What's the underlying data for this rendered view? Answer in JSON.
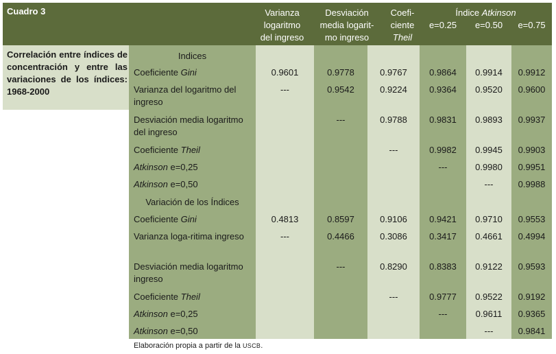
{
  "table": {
    "title": "Cuadro 3",
    "caption": "Correlación entre índices de concentración y entre las variaciones de los índices: 1968-2000",
    "headers": {
      "varianza": [
        "Varianza",
        "logaritmo",
        "del ingreso"
      ],
      "desviacion": [
        "Desviación",
        "media logarit-",
        "mo ingreso"
      ],
      "theil": [
        "Coefi-",
        "ciente",
        "Theil"
      ],
      "atkinson_group": "Índice Atkinson",
      "atkinson_group_prefix": "Índice ",
      "atkinson_group_italic": "Atkinson",
      "e025": "e=0.25",
      "e050": "e=0.50",
      "e075": "e=0.75"
    },
    "sections": {
      "indices": "Indices",
      "variacion": "Variación de los Índices"
    },
    "rows_indices": [
      {
        "label_pre": "Coeficiente ",
        "label_it": "Gini",
        "label_post": "",
        "values": [
          "0.9601",
          "0.9778",
          "0.9767",
          "0.9864",
          "0.9914",
          "0.9912"
        ]
      },
      {
        "label_pre": "Varianza del logaritmo del ingreso",
        "label_it": "",
        "label_post": "",
        "values": [
          "---",
          "0.9542",
          "0.9224",
          "0.9364",
          "0.9520",
          "0.9600"
        ]
      },
      {
        "label_pre": "Desviación media logaritmo del ingreso",
        "label_it": "",
        "label_post": "",
        "values": [
          "",
          "---",
          "0.9788",
          "0.9831",
          "0.9893",
          "0.9937"
        ]
      },
      {
        "label_pre": "Coeficiente ",
        "label_it": "Theil",
        "label_post": "",
        "values": [
          "",
          "",
          "---",
          "0.9982",
          "0.9945",
          "0.9903"
        ]
      },
      {
        "label_pre": "",
        "label_it": "Atkinson",
        "label_post": " e=0,25",
        "values": [
          "",
          "",
          "",
          "---",
          "0.9980",
          "0.9951"
        ]
      },
      {
        "label_pre": "",
        "label_it": "Atkinson",
        "label_post": " e=0,50",
        "values": [
          "",
          "",
          "",
          "",
          "---",
          "0.9988"
        ]
      }
    ],
    "rows_variacion": [
      {
        "label_pre": "Coeficiente ",
        "label_it": "Gini",
        "label_post": "",
        "values": [
          "0.4813",
          "0.8597",
          "0.9106",
          "0.9421",
          "0.9710",
          "0.9553"
        ]
      },
      {
        "label_pre": "Varianza loga-ritima ingreso",
        "label_it": "",
        "label_post": "",
        "values": [
          "---",
          "0.4466",
          "0.3086",
          "0.3417",
          "0.4661",
          "0.4994"
        ]
      },
      {
        "label_pre": "Desviación media logaritmo ingreso",
        "label_it": "",
        "label_post": "",
        "values": [
          "",
          "---",
          "0.8290",
          "0.8383",
          "0.9122",
          "0.9593"
        ]
      },
      {
        "label_pre": "Coeficiente ",
        "label_it": "Theil",
        "label_post": "",
        "values": [
          "",
          "",
          "---",
          "0.9777",
          "0.9522",
          "0.9192"
        ]
      },
      {
        "label_pre": "",
        "label_it": "Atkinson",
        "label_post": " e=0,25",
        "values": [
          "",
          "",
          "",
          "---",
          "0.9611",
          "0.9365"
        ]
      },
      {
        "label_pre": "",
        "label_it": "Atkinson",
        "label_post": " e=0,50",
        "values": [
          "",
          "",
          "",
          "",
          "---",
          "0.9841"
        ]
      }
    ],
    "footnote_pre": "Elaboración propia a partir de la ",
    "footnote_sc": "USCB",
    "footnote_post": "."
  }
}
